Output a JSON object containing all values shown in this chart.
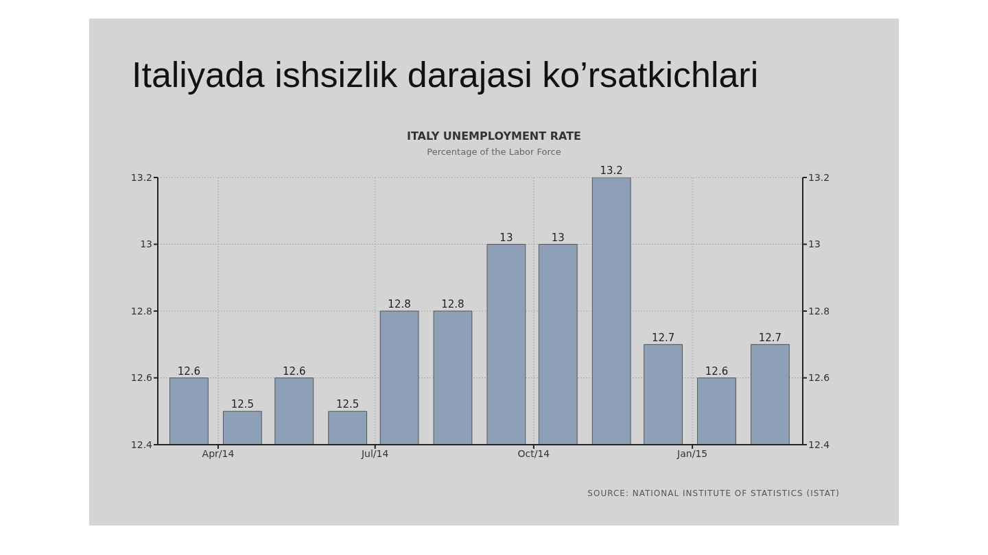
{
  "chart_data": {
    "type": "bar",
    "title": "Italiyada ishsizlik darajasi ko’rsatkichlari",
    "subtitle": "ITALY UNEMPLOYMENT RATE",
    "annotations": [
      "Percentage of the Labor Force",
      "SOURCE: NATIONAL INSTITUTE OF STATISTICS (ISTAT)"
    ],
    "x": [
      "2014-03-15",
      "2014-04-15",
      "2014-05-15",
      "2014-06-15",
      "2014-07-15",
      "2014-08-15",
      "2014-09-15",
      "2014-10-15",
      "2014-11-15",
      "2014-12-15",
      "2015-01-15",
      "2015-02-15"
    ],
    "values": [
      12.6,
      12.5,
      12.6,
      12.5,
      12.8,
      12.8,
      13,
      13,
      13.2,
      12.7,
      12.6,
      12.7
    ],
    "color": "#8e9fb8",
    "data_labels": true,
    "xlim": [
      "2014-02-25",
      "2015-03-06"
    ],
    "xticks": [
      {
        "value": "2014-04-01",
        "label": "Apr/14"
      },
      {
        "value": "2014-07-01",
        "label": "Jul/14"
      },
      {
        "value": "2014-10-01",
        "label": "Oct/14"
      },
      {
        "value": "2015-01-01",
        "label": "Jan/15"
      }
    ],
    "ylim": [
      12.4,
      13.2
    ],
    "yticks": [
      12.4,
      12.6,
      12.8,
      13,
      13.2
    ],
    "y2lim": [
      12.4,
      13.2
    ],
    "y2ticks": [
      12.4,
      12.6,
      12.8,
      13,
      13.2
    ],
    "grid": true
  }
}
